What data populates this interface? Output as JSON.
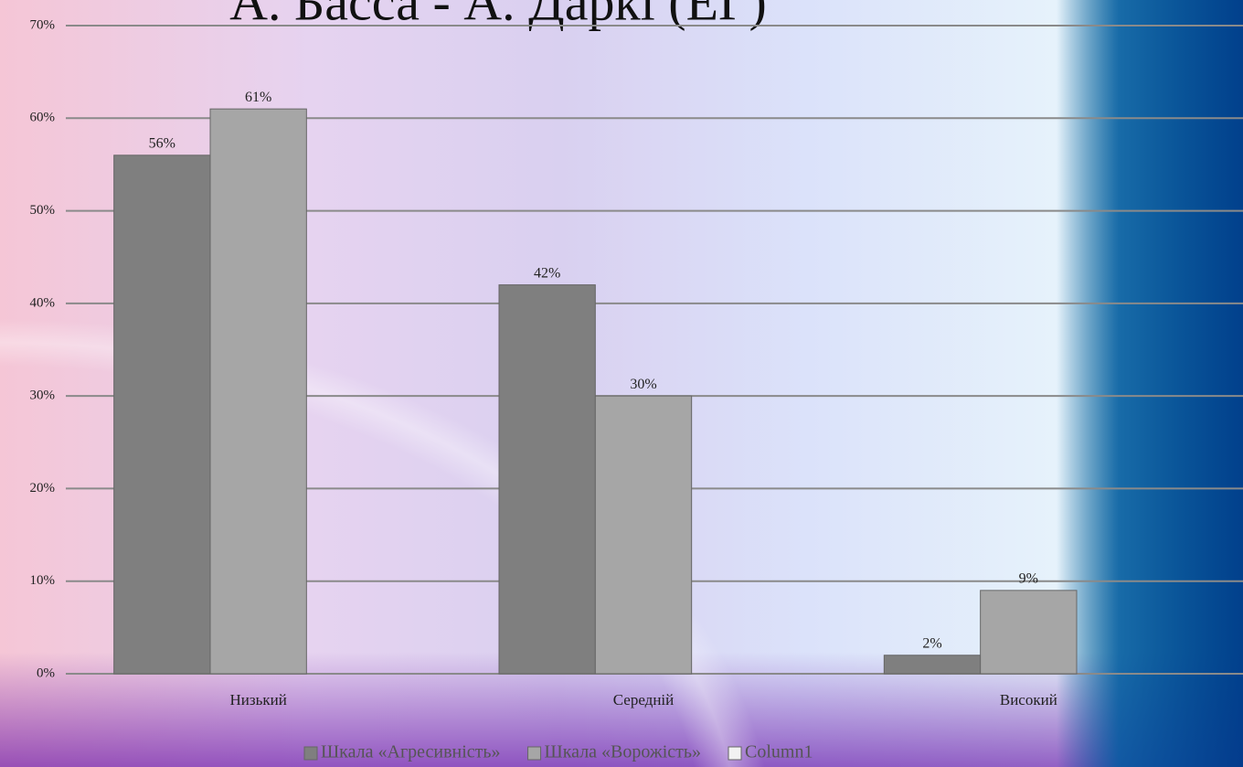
{
  "chart_data": {
    "type": "bar",
    "title": "А. Басса - А. Даркі (ЕГ)",
    "categories": [
      "Низький",
      "Середній",
      "Високий"
    ],
    "series": [
      {
        "name": "Шкала «Агресивність»",
        "color": "#7f7f7f",
        "values": [
          56,
          42,
          2
        ],
        "value_labels": [
          "56%",
          "42%",
          "2%"
        ]
      },
      {
        "name": "Шкала «Ворожість»",
        "color": "#a6a6a6",
        "values": [
          61,
          30,
          9
        ],
        "value_labels": [
          "61%",
          "30%",
          "9%"
        ]
      },
      {
        "name": "Column1",
        "color": "#f2f2f2",
        "values": [
          null,
          null,
          null
        ]
      }
    ],
    "ylim": [
      0,
      70
    ],
    "yticks": [
      {
        "value": 0,
        "label": "0%"
      },
      {
        "value": 10,
        "label": "10%"
      },
      {
        "value": 20,
        "label": "20%"
      },
      {
        "value": 30,
        "label": "30%"
      },
      {
        "value": 40,
        "label": "40%"
      },
      {
        "value": 50,
        "label": "50%"
      },
      {
        "value": 60,
        "label": "60%"
      },
      {
        "value": 70,
        "label": "70%"
      }
    ],
    "grid": true
  }
}
